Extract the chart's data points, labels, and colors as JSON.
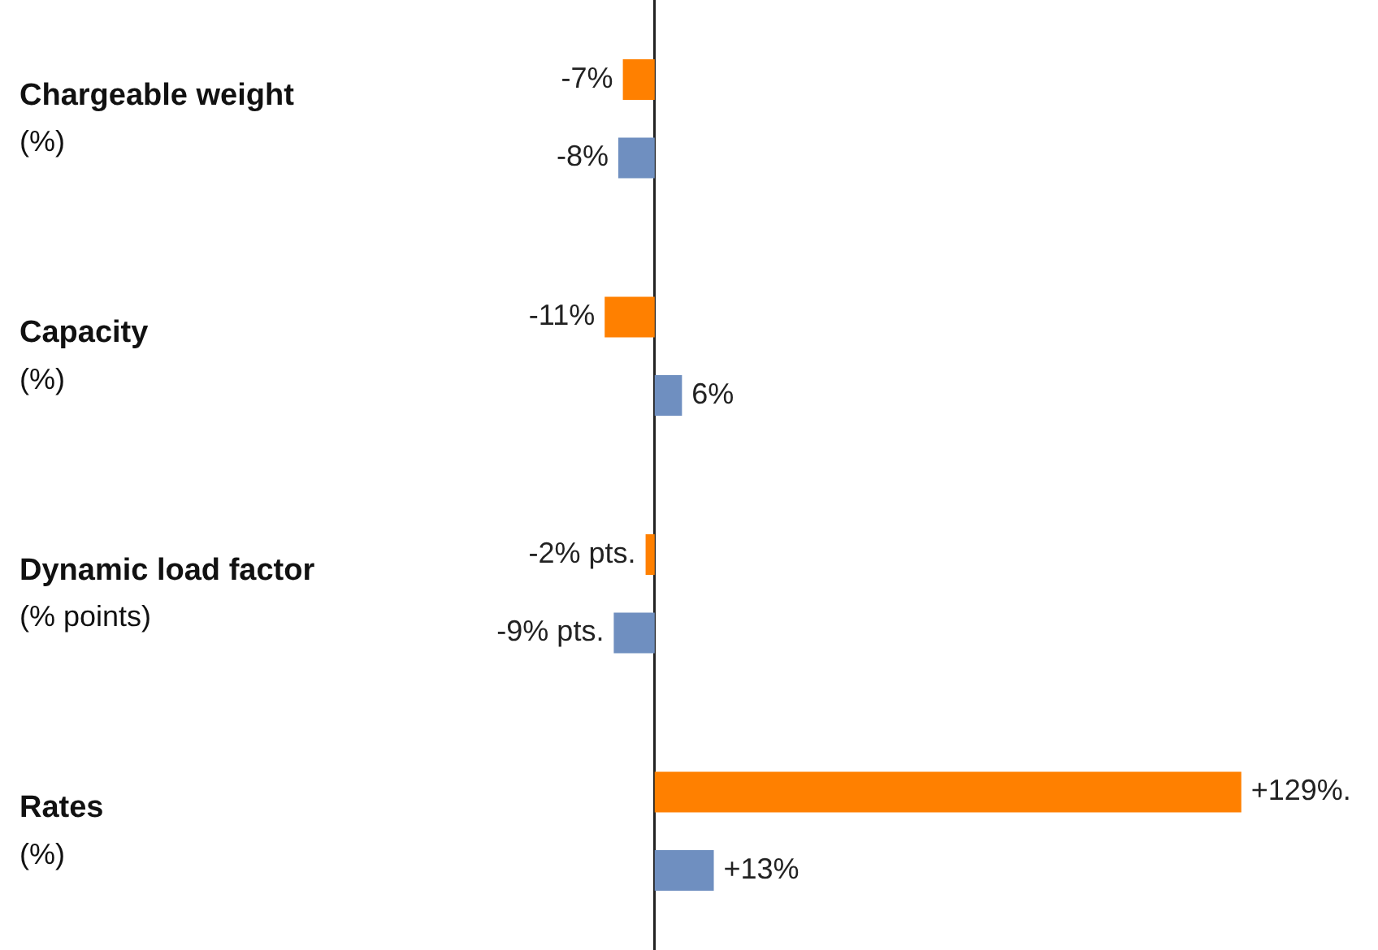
{
  "chart_data": {
    "type": "bar",
    "orientation": "horizontal",
    "tick_labels": "y",
    "categories": [
      "Chargeable weight\n(%)",
      "Capacity\n(%)",
      "Dynamic load factor\n(% points)",
      "Rates\n(%)"
    ],
    "series": [
      {
        "color": "#ff8000",
        "values": [
          -7,
          -11,
          -2,
          129
        ],
        "value_labels": [
          "-7%",
          "-11%",
          "-2% pts.",
          "+129%."
        ]
      },
      {
        "color": "#6f8fc0",
        "values": [
          -8,
          6,
          -9,
          13
        ],
        "value_labels": [
          "-8%",
          "6%",
          "-9% pts.",
          "+13%"
        ]
      }
    ]
  }
}
